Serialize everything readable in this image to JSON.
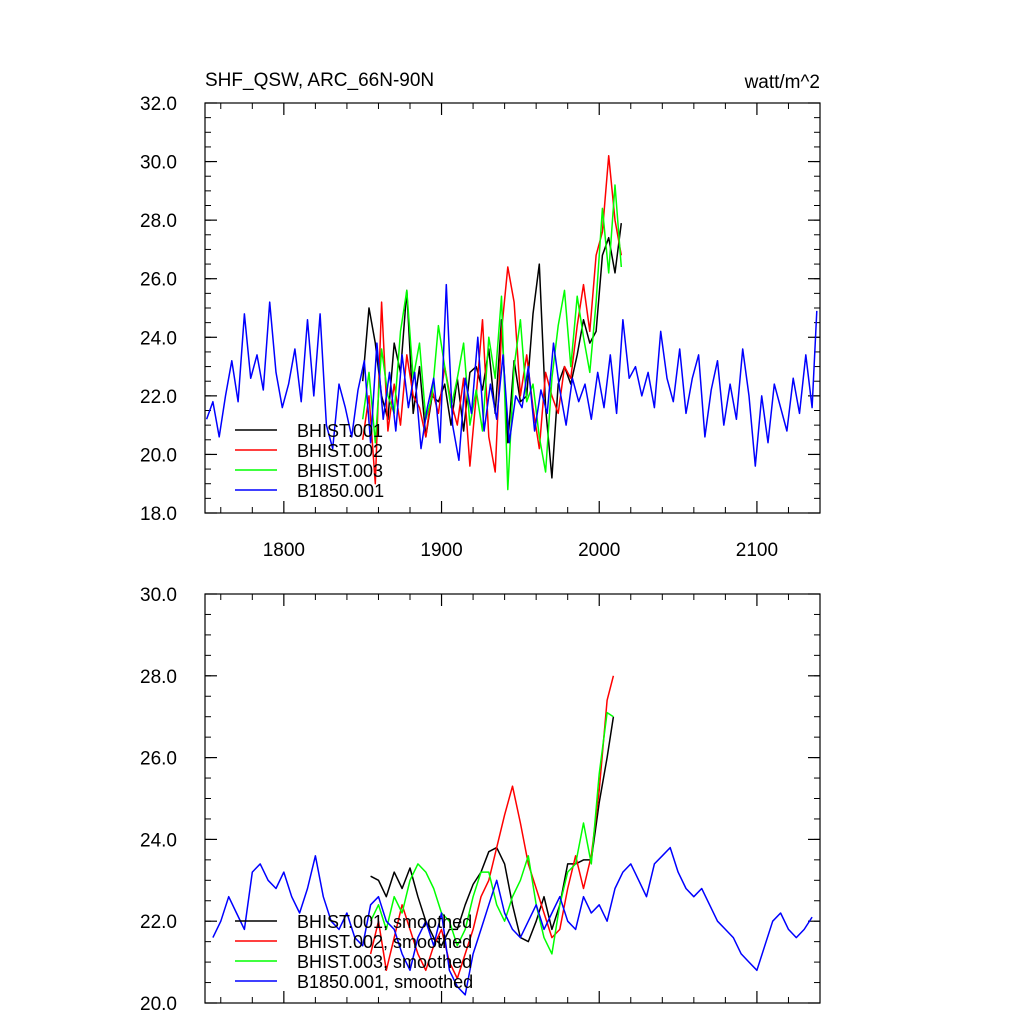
{
  "title": "SHF_QSW, ARC_66N-90N",
  "units": "watt/m^2",
  "chart_data": [
    {
      "type": "line",
      "panel": "top",
      "title": "SHF_QSW, ARC_66N-90N",
      "units": "watt/m^2",
      "xlim": [
        1750,
        2140
      ],
      "ylim": [
        18,
        32
      ],
      "xticks": [
        1800,
        1900,
        2000,
        2100
      ],
      "xtick_labels": [
        "1800",
        "1900",
        "2000",
        "2100"
      ],
      "yticks": [
        18,
        20,
        22,
        24,
        26,
        28,
        30,
        32
      ],
      "ytick_labels": [
        "18.0",
        "20.0",
        "22.0",
        "24.0",
        "26.0",
        "28.0",
        "30.0",
        "32.0"
      ],
      "legend": [
        "BHIST.001",
        "BHIST.002",
        "BHIST.003",
        "B1850.001"
      ],
      "legend_position": "bottom-left",
      "series": [
        {
          "name": "BHIST.001",
          "color": "#000000",
          "x": [
            1850,
            1854,
            1858,
            1862,
            1866,
            1870,
            1874,
            1878,
            1882,
            1886,
            1890,
            1894,
            1898,
            1902,
            1906,
            1910,
            1914,
            1918,
            1922,
            1926,
            1930,
            1934,
            1938,
            1942,
            1946,
            1950,
            1954,
            1958,
            1962,
            1966,
            1970,
            1974,
            1978,
            1982,
            1986,
            1990,
            1994,
            1998,
            2002,
            2006,
            2010,
            2014
          ],
          "values": [
            22.5,
            25.0,
            23.8,
            22.0,
            21.2,
            23.8,
            22.8,
            25.6,
            21.4,
            23.0,
            20.6,
            22.0,
            21.8,
            22.4,
            21.0,
            22.6,
            20.8,
            22.8,
            23.0,
            22.2,
            23.6,
            21.4,
            24.6,
            20.4,
            23.2,
            21.8,
            22.0,
            24.8,
            26.5,
            21.6,
            19.2,
            22.4,
            23.0,
            22.4,
            23.4,
            24.6,
            23.8,
            24.2,
            26.8,
            27.4,
            26.2,
            27.9
          ]
        },
        {
          "name": "BHIST.002",
          "color": "#ff0000",
          "x": [
            1850,
            1854,
            1858,
            1862,
            1866,
            1870,
            1874,
            1878,
            1882,
            1886,
            1890,
            1894,
            1898,
            1902,
            1906,
            1910,
            1914,
            1918,
            1922,
            1926,
            1930,
            1934,
            1938,
            1942,
            1946,
            1950,
            1954,
            1958,
            1962,
            1966,
            1970,
            1974,
            1978,
            1982,
            1986,
            1990,
            1994,
            1998,
            2002,
            2006,
            2010,
            2014
          ],
          "values": [
            20.5,
            22.0,
            19.0,
            25.2,
            20.8,
            22.4,
            21.0,
            23.4,
            22.0,
            21.6,
            20.6,
            22.2,
            21.4,
            23.0,
            21.8,
            21.0,
            22.6,
            19.6,
            22.0,
            24.6,
            20.6,
            19.4,
            24.2,
            26.4,
            25.2,
            22.0,
            23.4,
            21.6,
            20.2,
            22.8,
            22.0,
            21.4,
            23.0,
            22.6,
            24.4,
            25.8,
            24.2,
            26.8,
            27.6,
            30.2,
            28.0,
            26.8
          ]
        },
        {
          "name": "BHIST.003",
          "color": "#00ff00",
          "x": [
            1850,
            1854,
            1858,
            1862,
            1866,
            1870,
            1874,
            1878,
            1882,
            1886,
            1890,
            1894,
            1898,
            1902,
            1906,
            1910,
            1914,
            1918,
            1922,
            1926,
            1930,
            1934,
            1938,
            1942,
            1946,
            1950,
            1954,
            1958,
            1962,
            1966,
            1970,
            1974,
            1978,
            1982,
            1986,
            1990,
            1994,
            1998,
            2002,
            2006,
            2010,
            2014
          ],
          "values": [
            21.2,
            22.8,
            20.4,
            23.6,
            22.0,
            21.4,
            24.2,
            25.6,
            22.6,
            23.8,
            21.2,
            22.0,
            24.4,
            23.0,
            21.6,
            22.6,
            23.8,
            21.0,
            22.2,
            20.8,
            24.0,
            22.6,
            25.4,
            18.8,
            23.0,
            24.6,
            21.8,
            22.4,
            20.6,
            19.4,
            22.6,
            24.4,
            25.6,
            23.0,
            25.4,
            24.0,
            22.8,
            25.2,
            28.4,
            26.2,
            29.2,
            26.4
          ]
        },
        {
          "name": "B1850.001",
          "color": "#0000ff",
          "x": [
            1751,
            1755,
            1759,
            1763,
            1767,
            1771,
            1775,
            1779,
            1783,
            1787,
            1791,
            1795,
            1799,
            1803,
            1807,
            1811,
            1815,
            1819,
            1823,
            1827,
            1831,
            1835,
            1839,
            1843,
            1847,
            1851,
            1855,
            1859,
            1863,
            1867,
            1871,
            1875,
            1879,
            1883,
            1887,
            1891,
            1895,
            1899,
            1903,
            1907,
            1911,
            1915,
            1919,
            1923,
            1927,
            1931,
            1935,
            1939,
            1943,
            1947,
            1951,
            1955,
            1959,
            1963,
            1967,
            1971,
            1975,
            1979,
            1983,
            1987,
            1991,
            1995,
            1999,
            2003,
            2007,
            2011,
            2015,
            2019,
            2023,
            2027,
            2031,
            2035,
            2039,
            2043,
            2047,
            2051,
            2055,
            2059,
            2063,
            2067,
            2071,
            2075,
            2079,
            2083,
            2087,
            2091,
            2095,
            2099,
            2103,
            2107,
            2111,
            2115,
            2119,
            2123,
            2127,
            2131,
            2135,
            2138
          ],
          "values": [
            21.2,
            21.8,
            20.6,
            22.0,
            23.2,
            21.8,
            24.8,
            22.6,
            23.4,
            22.2,
            25.2,
            22.8,
            21.6,
            22.4,
            23.6,
            21.8,
            24.6,
            22.0,
            24.8,
            21.0,
            20.2,
            22.4,
            21.6,
            20.6,
            22.2,
            23.2,
            20.4,
            23.8,
            21.2,
            22.8,
            20.8,
            23.4,
            21.6,
            22.8,
            20.2,
            21.6,
            22.6,
            20.4,
            25.8,
            21.0,
            19.8,
            22.6,
            21.4,
            24.0,
            20.8,
            22.4,
            21.2,
            23.4,
            20.4,
            22.0,
            21.6,
            23.0,
            20.8,
            22.2,
            21.4,
            23.8,
            22.2,
            21.0,
            22.6,
            21.8,
            22.4,
            21.2,
            22.8,
            21.6,
            23.4,
            21.4,
            24.6,
            22.6,
            23.0,
            22.0,
            22.8,
            21.6,
            24.2,
            22.6,
            21.8,
            23.6,
            21.4,
            22.6,
            23.4,
            20.6,
            22.2,
            23.2,
            21.0,
            22.4,
            21.2,
            23.6,
            22.0,
            19.6,
            22.0,
            20.4,
            22.4,
            21.6,
            20.8,
            22.6,
            21.4,
            23.4,
            21.6,
            24.9
          ]
        }
      ]
    },
    {
      "type": "line",
      "panel": "bottom",
      "xlim": [
        1750,
        2140
      ],
      "ylim": [
        20,
        30
      ],
      "xticks": [
        1800,
        1900,
        2000,
        2100
      ],
      "yticks": [
        20,
        22,
        24,
        26,
        28,
        30
      ],
      "ytick_labels": [
        "20.0",
        "22.0",
        "24.0",
        "26.0",
        "28.0",
        "30.0"
      ],
      "legend": [
        "BHIST.001, smoothed",
        "BHIST.002, smoothed",
        "BHIST.003, smoothed",
        "B1850.001, smoothed"
      ],
      "legend_position": "bottom-left",
      "series": [
        {
          "name": "BHIST.001, smoothed",
          "color": "#000000",
          "x": [
            1855,
            1860,
            1865,
            1870,
            1875,
            1880,
            1885,
            1890,
            1895,
            1900,
            1905,
            1910,
            1915,
            1920,
            1925,
            1930,
            1935,
            1940,
            1945,
            1950,
            1955,
            1960,
            1965,
            1970,
            1975,
            1980,
            1985,
            1990,
            1995,
            2000,
            2005,
            2009
          ],
          "values": [
            23.1,
            23.0,
            22.6,
            23.2,
            22.8,
            23.3,
            22.6,
            22.0,
            21.6,
            21.4,
            21.8,
            21.8,
            22.4,
            22.9,
            23.2,
            23.7,
            23.8,
            23.4,
            22.4,
            21.6,
            21.5,
            22.0,
            22.6,
            21.8,
            22.4,
            23.4,
            23.4,
            23.5,
            23.5,
            24.9,
            26.0,
            27.0
          ]
        },
        {
          "name": "BHIST.002, smoothed",
          "color": "#ff0000",
          "x": [
            1855,
            1860,
            1865,
            1870,
            1875,
            1880,
            1885,
            1890,
            1895,
            1900,
            1905,
            1910,
            1915,
            1920,
            1925,
            1930,
            1935,
            1940,
            1945,
            1950,
            1955,
            1960,
            1965,
            1970,
            1975,
            1980,
            1985,
            1990,
            1995,
            2000,
            2005,
            2009
          ],
          "values": [
            21.2,
            22.0,
            20.8,
            21.6,
            22.4,
            21.8,
            21.2,
            20.8,
            21.4,
            21.8,
            21.0,
            20.6,
            21.2,
            21.8,
            22.6,
            23.0,
            23.8,
            24.6,
            25.3,
            24.4,
            23.4,
            22.8,
            22.2,
            21.6,
            21.8,
            22.8,
            23.6,
            22.8,
            23.6,
            25.2,
            27.4,
            28.0
          ]
        },
        {
          "name": "BHIST.003, smoothed",
          "color": "#00ff00",
          "x": [
            1855,
            1860,
            1865,
            1870,
            1875,
            1880,
            1885,
            1890,
            1895,
            1900,
            1905,
            1910,
            1915,
            1920,
            1925,
            1930,
            1935,
            1940,
            1945,
            1950,
            1955,
            1960,
            1965,
            1970,
            1975,
            1980,
            1985,
            1990,
            1995,
            2000,
            2005,
            2009
          ],
          "values": [
            22.0,
            22.4,
            21.8,
            22.6,
            22.2,
            23.0,
            23.4,
            23.2,
            22.8,
            22.2,
            22.0,
            21.4,
            21.8,
            22.6,
            23.2,
            23.2,
            22.4,
            22.0,
            22.6,
            23.0,
            23.6,
            22.4,
            21.6,
            21.2,
            22.4,
            23.2,
            23.4,
            24.4,
            23.4,
            25.6,
            27.1,
            27.0
          ]
        },
        {
          "name": "B1850.001, smoothed",
          "color": "#0000ff",
          "x": [
            1755,
            1760,
            1765,
            1770,
            1775,
            1780,
            1785,
            1790,
            1795,
            1800,
            1805,
            1810,
            1815,
            1820,
            1825,
            1830,
            1835,
            1840,
            1845,
            1850,
            1855,
            1860,
            1865,
            1870,
            1875,
            1880,
            1885,
            1890,
            1895,
            1900,
            1905,
            1910,
            1915,
            1920,
            1925,
            1930,
            1935,
            1940,
            1945,
            1950,
            1955,
            1960,
            1965,
            1970,
            1975,
            1980,
            1985,
            1990,
            1995,
            2000,
            2005,
            2010,
            2015,
            2020,
            2025,
            2030,
            2035,
            2040,
            2045,
            2050,
            2055,
            2060,
            2065,
            2070,
            2075,
            2080,
            2085,
            2090,
            2095,
            2100,
            2105,
            2110,
            2115,
            2120,
            2125,
            2130,
            2135
          ],
          "values": [
            21.6,
            22.0,
            22.6,
            22.2,
            21.8,
            23.2,
            23.4,
            23.0,
            22.8,
            23.2,
            22.6,
            22.2,
            22.8,
            23.6,
            22.6,
            22.0,
            21.8,
            22.2,
            21.6,
            21.4,
            22.4,
            22.6,
            22.0,
            21.8,
            21.2,
            20.8,
            21.6,
            22.0,
            21.4,
            22.2,
            20.8,
            20.4,
            20.2,
            21.2,
            21.8,
            22.4,
            23.0,
            22.2,
            21.8,
            21.6,
            22.0,
            22.4,
            21.8,
            22.2,
            22.6,
            22.0,
            21.8,
            22.6,
            22.2,
            22.4,
            22.0,
            22.8,
            23.2,
            23.4,
            23.0,
            22.6,
            23.4,
            23.6,
            23.8,
            23.2,
            22.8,
            22.6,
            22.8,
            22.4,
            22.0,
            21.8,
            21.6,
            21.2,
            21.0,
            20.8,
            21.4,
            22.0,
            22.2,
            21.8,
            21.6,
            21.8,
            22.1
          ]
        }
      ]
    }
  ]
}
